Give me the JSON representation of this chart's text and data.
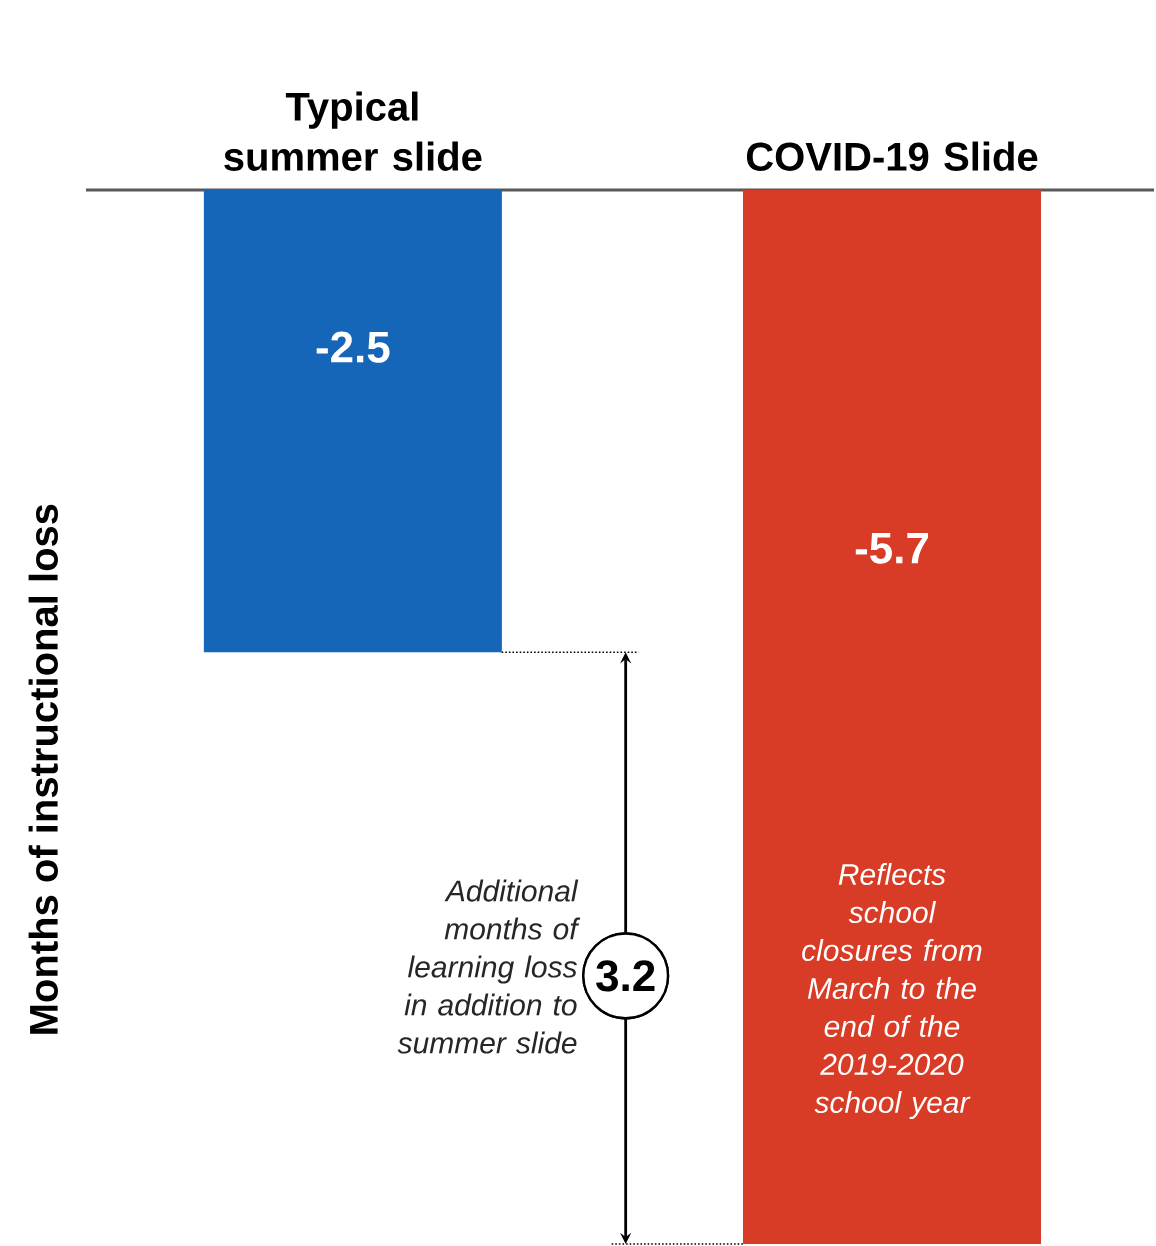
{
  "chart_data": {
    "type": "bar",
    "ylabel": "Months of instructional loss",
    "categories": [
      "Typical summer slide",
      "COVID-19 Slide"
    ],
    "values": [
      -2.5,
      -5.7
    ],
    "colors": [
      "#1565b8",
      "#d93c26"
    ],
    "data_labels": true,
    "ref_lines": [
      {
        "axis": "y",
        "value": -2.5,
        "line_style": "dotted",
        "color": "#000000"
      },
      {
        "axis": "y",
        "value": -5.7,
        "line_style": "dotted",
        "color": "#000000"
      }
    ],
    "annotations": [
      "3.2",
      "Additional months of learning loss in addition to summer slide",
      "Reflects school closures from March to the end of the 2019-2020 school year"
    ]
  }
}
